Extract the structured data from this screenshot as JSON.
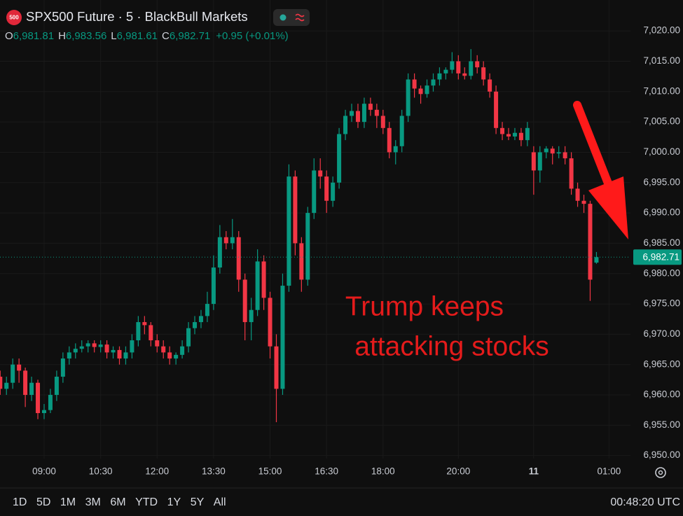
{
  "header": {
    "badge": "500",
    "ohlc": [
      {
        "key": "O",
        "value": "6,981.81"
      },
      {
        "key": "H",
        "value": "6,983.56"
      },
      {
        "key": "L",
        "value": "6,981.61"
      },
      {
        "key": "C",
        "value": "6,982.71"
      }
    ],
    "change": "+0.95 (+0.01%)"
  },
  "toolbar": {
    "ranges": [
      "1D",
      "5D",
      "1M",
      "3M",
      "6M",
      "YTD",
      "1Y",
      "5Y",
      "All"
    ],
    "clock": "00:48:20 UTC"
  },
  "chart_data": {
    "type": "candlestick",
    "title": "SPX500 Future · 5 · BlackBull Markets",
    "up_color": "#089981",
    "down_color": "#f23645",
    "grid": true,
    "annotation": [
      "Trump keeps",
      "attacking stocks"
    ],
    "last_price": {
      "value": 6982.71,
      "label": "6,982.71"
    },
    "xlim": [
      -0.03,
      100.42
    ],
    "xticks": [
      {
        "value": 7,
        "label": "09:00"
      },
      {
        "value": 16,
        "label": "10:30"
      },
      {
        "value": 25,
        "label": "12:00"
      },
      {
        "value": 34,
        "label": "13:30"
      },
      {
        "value": 43,
        "label": "15:00"
      },
      {
        "value": 52,
        "label": "16:30"
      },
      {
        "value": 61,
        "label": "18:00"
      },
      {
        "value": 73,
        "label": "20:00"
      },
      {
        "value": 85,
        "label": "11"
      },
      {
        "value": 97,
        "label": "01:00"
      }
    ],
    "ylim": [
      6949.5,
      7025.1
    ],
    "yticks": [
      {
        "value": 6950,
        "label": "6,950.00"
      },
      {
        "value": 6955,
        "label": "6,955.00"
      },
      {
        "value": 6960,
        "label": "6,960.00"
      },
      {
        "value": 6965,
        "label": "6,965.00"
      },
      {
        "value": 6970,
        "label": "6,970.00"
      },
      {
        "value": 6975,
        "label": "6,975.00"
      },
      {
        "value": 6980,
        "label": "6,980.00"
      },
      {
        "value": 6985,
        "label": "6,985.00"
      },
      {
        "value": 6990,
        "label": "6,990.00"
      },
      {
        "value": 6995,
        "label": "6,995.00"
      },
      {
        "value": 7000,
        "label": "7,000.00"
      },
      {
        "value": 7005,
        "label": "7,005.00"
      },
      {
        "value": 7010,
        "label": "7,010.00"
      },
      {
        "value": 7015,
        "label": "7,015.00"
      },
      {
        "value": 7020,
        "label": "7,020.00"
      }
    ],
    "open": [
      6963,
      6961,
      6962,
      6965,
      6964,
      6960,
      6962,
      6957,
      6957.5,
      6960,
      6963,
      6966,
      6967,
      6967.6,
      6968,
      6968.5,
      6967.9,
      6968.3,
      6967,
      6967.4,
      6966,
      6967,
      6969,
      6972,
      6971.5,
      6969,
      6968,
      6967,
      6966,
      6966.6,
      6968,
      6971,
      6972,
      6973,
      6975,
      6981,
      6986,
      6985,
      6986,
      6979,
      6972,
      6974,
      6982,
      6976,
      6968,
      6961,
      6978,
      6996,
      6985,
      6979,
      6990,
      6997,
      6996,
      6992,
      6995,
      7003,
      7006,
      7006.8,
      7005,
      7008,
      7007,
      7006,
      7004,
      7000,
      7001,
      7006,
      7012,
      7010.5,
      7009.6,
      7011,
      7012,
      7013,
      7013.6,
      7015,
      7013,
      7012.6,
      7015,
      7014,
      7012,
      7010,
      7004,
      7003,
      7002.6,
      7003.2,
      7002,
      7000,
      6997,
      7000,
      7000.6,
      6999.8,
      7000,
      6999,
      6994,
      6992,
      6991.5,
      6981.81
    ],
    "high": [
      6964,
      6963,
      6966,
      6966,
      6964.5,
      6963,
      6962.5,
      6958.5,
      6961,
      6964,
      6967,
      6968,
      6968.5,
      6969,
      6969,
      6969,
      6969,
      6969,
      6968,
      6968,
      6968,
      6970,
      6973,
      6973,
      6972,
      6970,
      6969,
      6968,
      6967,
      6969,
      6972,
      6973,
      6974,
      6977,
      6983,
      6988,
      6987,
      6989,
      6987,
      6980,
      6976,
      6984,
      6983,
      6977,
      6970,
      6980,
      6998,
      6997,
      6986,
      6991,
      6999,
      6999,
      6997,
      6996,
      7004,
      7007,
      7008,
      7008,
      7009,
      7009,
      7008,
      7007,
      7005,
      7002,
      7007,
      7013,
      7013,
      7011,
      7012,
      7013,
      7014,
      7014,
      7016.5,
      7016,
      7014,
      7017,
      7016,
      7015,
      7013,
      7011,
      7005,
      7004,
      7004,
      7004,
      7005,
      7001,
      7001,
      7001,
      7001,
      7001,
      7001,
      7000,
      6995,
      6993,
      6992,
      6983.56
    ],
    "low": [
      6960,
      6960,
      6961,
      6962,
      6958,
      6959,
      6956,
      6956,
      6957,
      6959,
      6962,
      6965,
      6966,
      6967,
      6967,
      6967,
      6967,
      6966,
      6966,
      6965,
      6965,
      6966,
      6968,
      6970,
      6968,
      6967,
      6966,
      6965,
      6965,
      6966,
      6967,
      6970,
      6971,
      6972,
      6974,
      6980,
      6984,
      6984,
      6977,
      6969,
      6969,
      6973,
      6974,
      6966,
      6955.5,
      6960,
      6977,
      6983,
      6977,
      6978,
      6989,
      6994,
      6990,
      6991,
      6994,
      7002,
      7005,
      7004,
      7004,
      7006,
      7004,
      7003,
      6999,
      6998,
      7000,
      7005,
      7009,
      7008,
      7009,
      7010,
      7011,
      7012,
      7013,
      7012,
      7012,
      7012,
      7013,
      7011,
      7009,
      7003,
      7002,
      7002,
      7002,
      7001,
      7001,
      6993,
      6995,
      6999,
      6998,
      6999,
      6998,
      6993,
      6991,
      6990,
      6975.5,
      6981.61
    ],
    "close": [
      6961,
      6962,
      6965,
      6964,
      6960,
      6962,
      6957,
      6957.5,
      6960,
      6963,
      6966,
      6967,
      6967.6,
      6968,
      6968.5,
      6967.9,
      6968.3,
      6967,
      6967.4,
      6966,
      6967,
      6969,
      6972,
      6971.5,
      6969,
      6968,
      6967,
      6966,
      6966.6,
      6968,
      6971,
      6972,
      6973,
      6975,
      6981,
      6986,
      6985,
      6986,
      6979,
      6972,
      6974,
      6982,
      6976,
      6968,
      6961,
      6978,
      6996,
      6985,
      6979,
      6990,
      6997,
      6996,
      6992,
      6995,
      7003,
      7006,
      7006.8,
      7005,
      7008,
      7007,
      7006,
      7004,
      7000,
      7001,
      7006,
      7012,
      7010.5,
      7009.6,
      7011,
      7012,
      7013,
      7013.6,
      7015,
      7013,
      7012.6,
      7015,
      7014,
      7012,
      7010,
      7004,
      7003,
      7002.6,
      7003.2,
      7002,
      7004,
      6997,
      7000,
      7000.6,
      6999.8,
      7000,
      6999,
      6994,
      6992,
      6991.5,
      6979,
      6982.71
    ]
  }
}
